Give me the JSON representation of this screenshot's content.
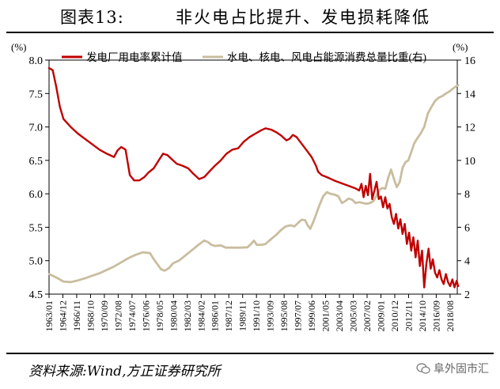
{
  "header": {
    "figure_label": "图表13:",
    "title": "非火电占比提升、发电损耗降低"
  },
  "footer": {
    "source": "资料来源:Wind,方正证券研究所",
    "watermark": "阜外固市汇"
  },
  "chart_data": {
    "type": "line",
    "left_axis": {
      "unit": "(%)",
      "ylim": [
        4.5,
        8.0
      ],
      "ticks": [
        "8.0",
        "7.5",
        "7.0",
        "6.5",
        "6.0",
        "5.5",
        "5.0",
        "4.5"
      ]
    },
    "right_axis": {
      "unit": "(%)",
      "ylim": [
        2,
        16
      ],
      "ticks": [
        "16",
        "14",
        "12",
        "10",
        "8",
        "6",
        "4",
        "2"
      ]
    },
    "x_ticks": [
      "1963/01",
      "1964/12",
      "1966/11",
      "1968/10",
      "1970/09",
      "1972/08",
      "1974/07",
      "1976/06",
      "1978/05",
      "1980/04",
      "1982/03",
      "1984/02",
      "1986/01",
      "1987/12",
      "1989/11",
      "1991/10",
      "1993/09",
      "1995/08",
      "1997/07",
      "1999/06",
      "2001/05",
      "2003/04",
      "2005/03",
      "2007/02",
      "2009/01",
      "2010/12",
      "2012/11",
      "2014/10",
      "2016/09",
      "2018/08"
    ],
    "x_range": [
      "1963-01",
      "2019-08"
    ],
    "legend": {
      "position": "top"
    },
    "series": [
      {
        "name": "发电厂用电率累计值",
        "color": "#c00000",
        "axis": "left",
        "data": [
          [
            1963.0,
            7.88
          ],
          [
            1963.5,
            7.85
          ],
          [
            1964.0,
            7.6
          ],
          [
            1964.5,
            7.3
          ],
          [
            1965.0,
            7.12
          ],
          [
            1966.0,
            7.0
          ],
          [
            1967.0,
            6.9
          ],
          [
            1968.0,
            6.82
          ],
          [
            1969.0,
            6.74
          ],
          [
            1970.0,
            6.66
          ],
          [
            1971.0,
            6.6
          ],
          [
            1972.0,
            6.55
          ],
          [
            1972.5,
            6.65
          ],
          [
            1973.0,
            6.7
          ],
          [
            1973.6,
            6.66
          ],
          [
            1974.2,
            6.28
          ],
          [
            1974.8,
            6.2
          ],
          [
            1975.5,
            6.2
          ],
          [
            1976.2,
            6.25
          ],
          [
            1976.8,
            6.32
          ],
          [
            1977.5,
            6.38
          ],
          [
            1978.2,
            6.5
          ],
          [
            1978.8,
            6.6
          ],
          [
            1979.4,
            6.58
          ],
          [
            1980.0,
            6.52
          ],
          [
            1980.7,
            6.45
          ],
          [
            1981.5,
            6.42
          ],
          [
            1982.3,
            6.38
          ],
          [
            1983.0,
            6.3
          ],
          [
            1983.8,
            6.22
          ],
          [
            1984.5,
            6.25
          ],
          [
            1985.2,
            6.33
          ],
          [
            1986.0,
            6.42
          ],
          [
            1986.8,
            6.5
          ],
          [
            1987.6,
            6.6
          ],
          [
            1988.4,
            6.66
          ],
          [
            1989.2,
            6.68
          ],
          [
            1990.0,
            6.78
          ],
          [
            1990.8,
            6.85
          ],
          [
            1991.6,
            6.9
          ],
          [
            1992.4,
            6.95
          ],
          [
            1993.0,
            6.98
          ],
          [
            1993.8,
            6.96
          ],
          [
            1994.5,
            6.92
          ],
          [
            1995.2,
            6.87
          ],
          [
            1995.9,
            6.8
          ],
          [
            1996.3,
            6.82
          ],
          [
            1996.8,
            6.88
          ],
          [
            1997.3,
            6.85
          ],
          [
            1998.0,
            6.75
          ],
          [
            1998.7,
            6.65
          ],
          [
            1999.4,
            6.55
          ],
          [
            2000.0,
            6.42
          ],
          [
            2000.3,
            6.33
          ],
          [
            2000.8,
            6.28
          ],
          [
            2001.5,
            6.25
          ],
          [
            2002.5,
            6.2
          ],
          [
            2003.5,
            6.16
          ],
          [
            2004.5,
            6.12
          ],
          [
            2005.5,
            6.08
          ],
          [
            2006.0,
            6.05
          ],
          [
            2006.3,
            6.15
          ],
          [
            2006.6,
            5.95
          ],
          [
            2006.9,
            6.12
          ],
          [
            2007.2,
            5.98
          ],
          [
            2007.5,
            6.3
          ],
          [
            2007.8,
            5.92
          ],
          [
            2008.1,
            6.05
          ],
          [
            2008.4,
            6.18
          ],
          [
            2008.7,
            5.92
          ],
          [
            2009.0,
            5.96
          ],
          [
            2009.3,
            5.8
          ],
          [
            2009.6,
            5.95
          ],
          [
            2009.9,
            5.78
          ],
          [
            2010.2,
            5.85
          ],
          [
            2010.5,
            5.65
          ],
          [
            2010.8,
            5.55
          ],
          [
            2011.1,
            5.7
          ],
          [
            2011.4,
            5.48
          ],
          [
            2011.7,
            5.62
          ],
          [
            2012.0,
            5.4
          ],
          [
            2012.3,
            5.55
          ],
          [
            2012.6,
            5.25
          ],
          [
            2012.9,
            5.42
          ],
          [
            2013.2,
            5.15
          ],
          [
            2013.5,
            5.35
          ],
          [
            2013.8,
            5.05
          ],
          [
            2014.1,
            5.3
          ],
          [
            2014.4,
            4.92
          ],
          [
            2014.7,
            5.15
          ],
          [
            2015.0,
            4.6
          ],
          [
            2015.3,
            4.95
          ],
          [
            2015.6,
            5.18
          ],
          [
            2015.9,
            4.88
          ],
          [
            2016.2,
            5.02
          ],
          [
            2016.5,
            4.82
          ],
          [
            2016.8,
            4.75
          ],
          [
            2017.1,
            4.86
          ],
          [
            2017.4,
            4.72
          ],
          [
            2017.7,
            4.65
          ],
          [
            2018.0,
            4.8
          ],
          [
            2018.3,
            4.68
          ],
          [
            2018.6,
            4.62
          ],
          [
            2018.9,
            4.72
          ],
          [
            2019.2,
            4.6
          ],
          [
            2019.5,
            4.7
          ],
          [
            2019.7,
            4.62
          ]
        ]
      },
      {
        "name": "水电、核电、风电占能源消费总量比重(右)",
        "color": "#c9bd9f",
        "axis": "right",
        "data": [
          [
            1963.0,
            3.2
          ],
          [
            1964.0,
            3.0
          ],
          [
            1965.0,
            2.75
          ],
          [
            1966.0,
            2.72
          ],
          [
            1967.0,
            2.82
          ],
          [
            1968.0,
            2.95
          ],
          [
            1969.0,
            3.1
          ],
          [
            1970.0,
            3.25
          ],
          [
            1971.0,
            3.45
          ],
          [
            1972.0,
            3.65
          ],
          [
            1973.0,
            3.9
          ],
          [
            1974.0,
            4.15
          ],
          [
            1975.0,
            4.35
          ],
          [
            1976.0,
            4.5
          ],
          [
            1977.0,
            4.45
          ],
          [
            1977.5,
            4.1
          ],
          [
            1978.0,
            3.8
          ],
          [
            1978.5,
            3.5
          ],
          [
            1979.0,
            3.4
          ],
          [
            1979.6,
            3.55
          ],
          [
            1980.2,
            3.85
          ],
          [
            1981.0,
            4.0
          ],
          [
            1982.0,
            4.35
          ],
          [
            1983.0,
            4.7
          ],
          [
            1983.8,
            4.98
          ],
          [
            1984.5,
            5.2
          ],
          [
            1985.0,
            5.12
          ],
          [
            1985.5,
            4.95
          ],
          [
            1986.0,
            4.88
          ],
          [
            1986.8,
            4.92
          ],
          [
            1987.5,
            4.78
          ],
          [
            1988.5,
            4.78
          ],
          [
            1989.5,
            4.78
          ],
          [
            1990.5,
            4.8
          ],
          [
            1991.0,
            5.0
          ],
          [
            1991.4,
            5.2
          ],
          [
            1991.8,
            4.95
          ],
          [
            1992.5,
            4.95
          ],
          [
            1993.0,
            5.0
          ],
          [
            1993.8,
            5.3
          ],
          [
            1994.5,
            5.55
          ],
          [
            1995.2,
            5.85
          ],
          [
            1995.8,
            6.05
          ],
          [
            1996.5,
            6.12
          ],
          [
            1997.0,
            6.05
          ],
          [
            1997.5,
            6.25
          ],
          [
            1998.0,
            6.45
          ],
          [
            1998.5,
            6.42
          ],
          [
            1998.8,
            6.15
          ],
          [
            1999.2,
            5.9
          ],
          [
            1999.6,
            6.3
          ],
          [
            2000.0,
            6.75
          ],
          [
            2000.5,
            7.35
          ],
          [
            2001.0,
            7.85
          ],
          [
            2001.5,
            8.1
          ],
          [
            2002.0,
            8.0
          ],
          [
            2002.6,
            7.95
          ],
          [
            2003.1,
            7.85
          ],
          [
            2003.6,
            7.45
          ],
          [
            2004.0,
            7.55
          ],
          [
            2004.5,
            7.72
          ],
          [
            2005.0,
            7.65
          ],
          [
            2005.5,
            7.45
          ],
          [
            2006.0,
            7.5
          ],
          [
            2006.5,
            7.45
          ],
          [
            2007.0,
            7.4
          ],
          [
            2007.5,
            7.45
          ],
          [
            2008.0,
            7.58
          ],
          [
            2008.4,
            7.9
          ],
          [
            2008.8,
            8.25
          ],
          [
            2009.2,
            8.35
          ],
          [
            2009.6,
            8.3
          ],
          [
            2010.0,
            8.95
          ],
          [
            2010.4,
            9.45
          ],
          [
            2010.8,
            8.9
          ],
          [
            2011.2,
            8.4
          ],
          [
            2011.6,
            8.7
          ],
          [
            2012.0,
            9.55
          ],
          [
            2012.4,
            9.9
          ],
          [
            2012.8,
            10.0
          ],
          [
            2013.2,
            10.5
          ],
          [
            2013.6,
            11.0
          ],
          [
            2014.0,
            11.3
          ],
          [
            2014.5,
            11.6
          ],
          [
            2015.0,
            12.0
          ],
          [
            2015.5,
            12.8
          ],
          [
            2016.0,
            13.2
          ],
          [
            2016.5,
            13.55
          ],
          [
            2017.0,
            13.75
          ],
          [
            2017.5,
            13.85
          ],
          [
            2018.0,
            14.0
          ],
          [
            2018.5,
            14.12
          ],
          [
            2019.0,
            14.3
          ],
          [
            2019.5,
            14.45
          ],
          [
            2019.7,
            14.5
          ]
        ]
      }
    ]
  }
}
